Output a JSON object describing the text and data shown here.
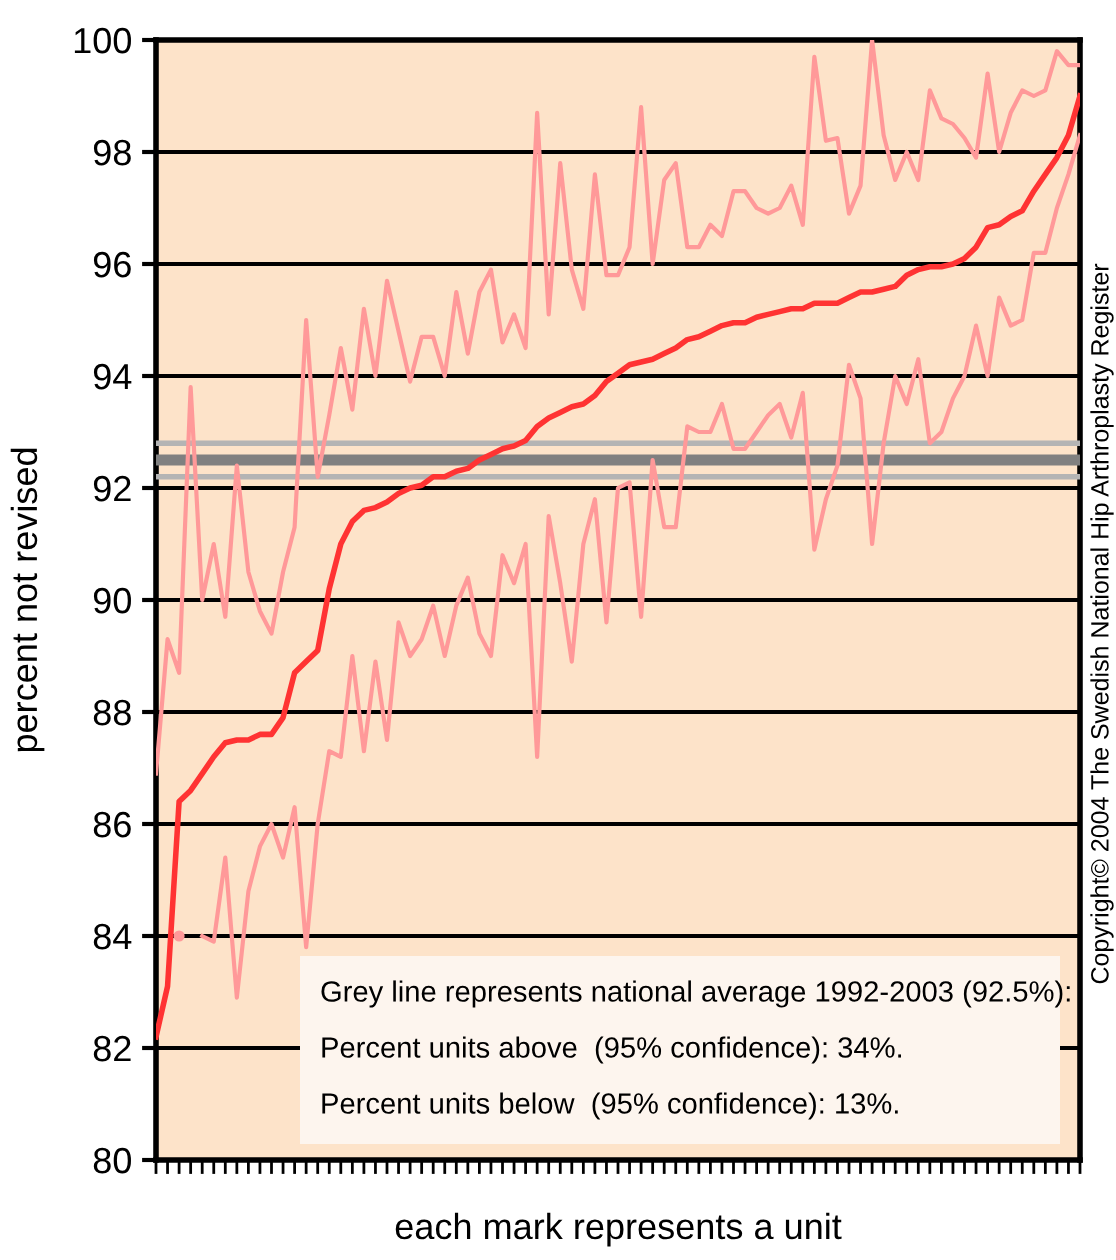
{
  "chart_data": {
    "type": "line",
    "xlabel": "each mark represents a unit",
    "ylabel": "percent not revised",
    "categories": [
      null,
      null,
      null,
      null,
      null,
      null,
      null,
      null,
      null,
      null,
      null,
      null,
      null,
      null,
      null,
      null,
      null,
      null,
      null,
      null,
      null,
      null,
      null,
      null,
      null,
      null,
      null,
      null,
      null,
      null,
      null,
      null,
      null,
      null,
      null,
      null,
      null,
      null,
      null,
      null,
      null,
      null,
      null,
      null,
      null,
      null,
      null,
      null,
      null,
      null,
      null,
      null,
      null,
      null,
      null,
      null,
      null,
      null,
      null,
      null,
      null,
      null,
      null,
      null,
      null,
      null,
      null,
      null,
      null,
      null,
      null,
      null,
      null,
      null,
      null,
      null,
      null,
      null,
      null,
      null,
      null
    ],
    "series": [
      {
        "color": "#ff9999",
        "values": [
          86.9,
          89.3,
          88.7,
          93.8,
          90.0,
          91.0,
          89.7,
          92.4,
          90.5,
          89.8,
          89.4,
          90.5,
          91.3,
          95.0,
          92.2,
          93.3,
          94.5,
          93.4,
          95.2,
          94.0,
          95.7,
          94.8,
          93.9,
          94.7,
          94.7,
          94.0,
          95.5,
          94.4,
          95.5,
          95.9,
          94.6,
          95.1,
          94.5,
          98.7,
          95.1,
          97.8,
          95.9,
          95.2,
          97.6,
          95.8,
          95.8,
          96.3,
          98.8,
          96.0,
          97.5,
          97.8,
          96.3,
          96.3,
          96.7,
          96.5,
          97.3,
          97.3,
          97.0,
          96.9,
          97.0,
          97.4,
          96.7,
          99.7,
          98.2,
          98.25,
          96.9,
          97.4,
          100.0,
          98.3,
          97.5,
          98.0,
          97.5,
          99.1,
          98.6,
          98.5,
          98.25,
          97.9,
          99.4,
          98.0,
          98.7,
          99.1,
          99.0,
          99.1,
          99.8,
          99.55,
          99.55
        ]
      },
      {
        "color": "#ff9999",
        "values": [
          null,
          null,
          84.0,
          null,
          84.0,
          83.9,
          85.4,
          82.9,
          84.8,
          85.6,
          86.0,
          85.4,
          86.3,
          83.8,
          86.0,
          87.3,
          87.2,
          89.0,
          87.3,
          88.9,
          87.5,
          89.6,
          89.0,
          89.3,
          89.9,
          89.0,
          89.9,
          90.4,
          89.4,
          89.0,
          90.8,
          90.3,
          91.0,
          87.2,
          91.5,
          90.3,
          88.9,
          91.0,
          91.8,
          89.6,
          92.0,
          92.1,
          89.7,
          92.5,
          91.3,
          91.3,
          93.1,
          93.0,
          93.0,
          93.5,
          92.7,
          92.7,
          93.0,
          93.3,
          93.5,
          92.9,
          93.7,
          90.9,
          91.8,
          92.4,
          94.2,
          93.6,
          91.0,
          92.8,
          94.0,
          93.5,
          94.3,
          92.8,
          93.0,
          93.6,
          94.0,
          94.9,
          94.0,
          95.4,
          94.9,
          95.0,
          96.2,
          96.2,
          97.0,
          97.6,
          98.3
        ]
      },
      {
        "color": "#ff3333",
        "values": [
          82.2,
          83.1,
          86.4,
          86.6,
          86.9,
          87.2,
          87.45,
          87.5,
          87.5,
          87.6,
          87.6,
          87.9,
          88.7,
          88.9,
          89.1,
          90.2,
          91.0,
          91.4,
          91.6,
          91.65,
          91.75,
          91.9,
          92.0,
          92.05,
          92.2,
          92.2,
          92.3,
          92.35,
          92.5,
          92.6,
          92.7,
          92.75,
          92.85,
          93.1,
          93.25,
          93.35,
          93.45,
          93.5,
          93.65,
          93.9,
          94.05,
          94.2,
          94.25,
          94.3,
          94.4,
          94.5,
          94.65,
          94.7,
          94.8,
          94.9,
          94.95,
          94.95,
          95.05,
          95.1,
          95.15,
          95.2,
          95.2,
          95.3,
          95.3,
          95.3,
          95.4,
          95.5,
          95.5,
          95.55,
          95.6,
          95.8,
          95.9,
          95.95,
          95.95,
          96.0,
          96.1,
          96.3,
          96.65,
          96.7,
          96.85,
          96.95,
          97.3,
          97.6,
          97.9,
          98.3,
          99.0
        ]
      }
    ],
    "ylim": [
      80,
      100
    ],
    "yticks": [
      80,
      82,
      84,
      86,
      88,
      90,
      92,
      94,
      96,
      98,
      100
    ],
    "grid": "y",
    "legend": false,
    "tick_labels": "y",
    "marker": "none",
    "line_style": "solid",
    "ref_lines": [
      {
        "axis": "y",
        "value": 92.8,
        "color": "#b4b4b4"
      },
      {
        "axis": "y",
        "value": 92.2,
        "color": "#b4b4b4"
      },
      {
        "axis": "y",
        "value": 92.5,
        "color": "#808080"
      }
    ],
    "annotations": [
      "Grey line represents national average 1992-2003 (92.5%):",
      "Percent units above  (95% confidence): 34%.",
      "Percent units below  (95% confidence): 13%.",
      "Copyright© 2004 The Swedish National Hip Arthroplasty Register"
    ]
  }
}
